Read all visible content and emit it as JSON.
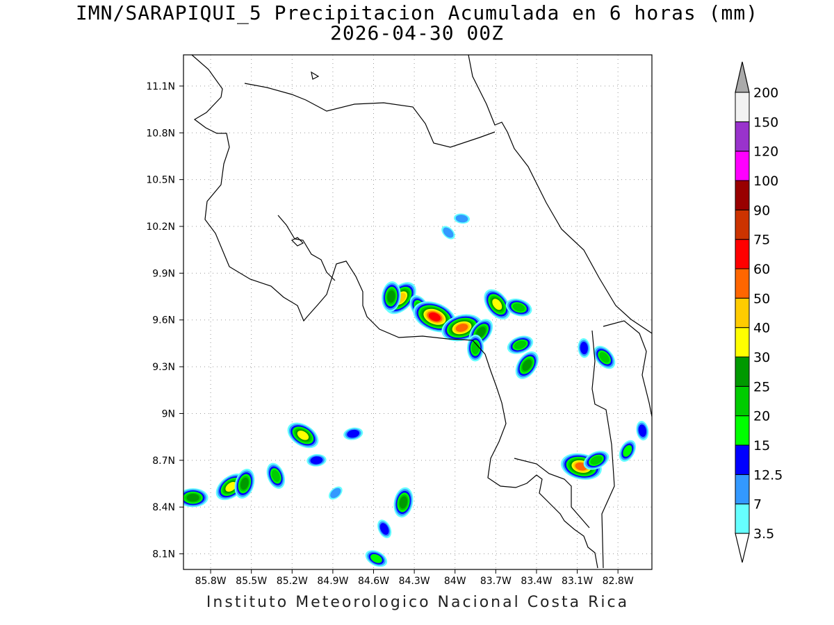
{
  "title": {
    "line1": "IMN/SARAPIQUI_5 Precipitacion Acumulada en 6 horas (mm)",
    "line2": "2026-04-30 00Z"
  },
  "footer": "Instituto Meteorologico Nacional Costa Rica",
  "map": {
    "lat_labels": [
      "11.1N",
      "10.8N",
      "10.5N",
      "10.2N",
      "9.9N",
      "9.6N",
      "9.3N",
      "9N",
      "8.7N",
      "8.4N",
      "8.1N"
    ],
    "lon_labels": [
      "85.8W",
      "85.5W",
      "85.2W",
      "84.9W",
      "84.6W",
      "84.3W",
      "84W",
      "83.7W",
      "83.4W",
      "83.1W",
      "82.8W"
    ]
  },
  "colorbar": {
    "levels": [
      "3.5",
      "7",
      "12.5",
      "15",
      "20",
      "25",
      "30",
      "40",
      "50",
      "60",
      "75",
      "90",
      "100",
      "120",
      "150",
      "200"
    ],
    "colors": [
      "#66ffff",
      "#3399ff",
      "#0000ff",
      "#00ff00",
      "#00cc00",
      "#009900",
      "#ffff00",
      "#ffcc00",
      "#ff6600",
      "#ff0000",
      "#cc3300",
      "#990000",
      "#ff00ff",
      "#9933cc",
      "#f2f2f2",
      "#aaaaaa"
    ]
  },
  "precip_cells": [
    {
      "lon": -85.93,
      "lat": 8.46,
      "level": 5
    },
    {
      "lon": -85.65,
      "lat": 8.53,
      "level": 6
    },
    {
      "lon": -85.55,
      "lat": 8.55,
      "level": 5
    },
    {
      "lon": -85.32,
      "lat": 8.6,
      "level": 4
    },
    {
      "lon": -85.12,
      "lat": 8.86,
      "level": 6
    },
    {
      "lon": -85.02,
      "lat": 8.7,
      "level": 2
    },
    {
      "lon": -84.88,
      "lat": 8.49,
      "level": 1
    },
    {
      "lon": -84.38,
      "lat": 8.43,
      "level": 5
    },
    {
      "lon": -84.52,
      "lat": 8.26,
      "level": 2
    },
    {
      "lon": -84.58,
      "lat": 8.07,
      "level": 3
    },
    {
      "lon": -84.75,
      "lat": 8.87,
      "level": 2
    },
    {
      "lon": -84.4,
      "lat": 9.74,
      "level": 7
    },
    {
      "lon": -84.47,
      "lat": 9.75,
      "level": 5
    },
    {
      "lon": -84.26,
      "lat": 9.68,
      "level": 4
    },
    {
      "lon": -84.15,
      "lat": 9.62,
      "level": 9
    },
    {
      "lon": -83.95,
      "lat": 9.55,
      "level": 8
    },
    {
      "lon": -83.81,
      "lat": 9.52,
      "level": 5
    },
    {
      "lon": -83.85,
      "lat": 9.42,
      "level": 4
    },
    {
      "lon": -83.69,
      "lat": 9.7,
      "level": 6
    },
    {
      "lon": -83.53,
      "lat": 9.68,
      "level": 4
    },
    {
      "lon": -83.52,
      "lat": 9.44,
      "level": 4
    },
    {
      "lon": -83.47,
      "lat": 9.31,
      "level": 5
    },
    {
      "lon": -83.05,
      "lat": 9.42,
      "level": 2
    },
    {
      "lon": -82.9,
      "lat": 9.36,
      "level": 4
    },
    {
      "lon": -83.07,
      "lat": 8.66,
      "level": 8
    },
    {
      "lon": -82.96,
      "lat": 8.7,
      "level": 4
    },
    {
      "lon": -82.73,
      "lat": 8.76,
      "level": 3
    },
    {
      "lon": -82.62,
      "lat": 8.89,
      "level": 2
    },
    {
      "lon": -84.05,
      "lat": 10.16,
      "level": 1
    },
    {
      "lon": -83.95,
      "lat": 10.25,
      "level": 1
    }
  ]
}
